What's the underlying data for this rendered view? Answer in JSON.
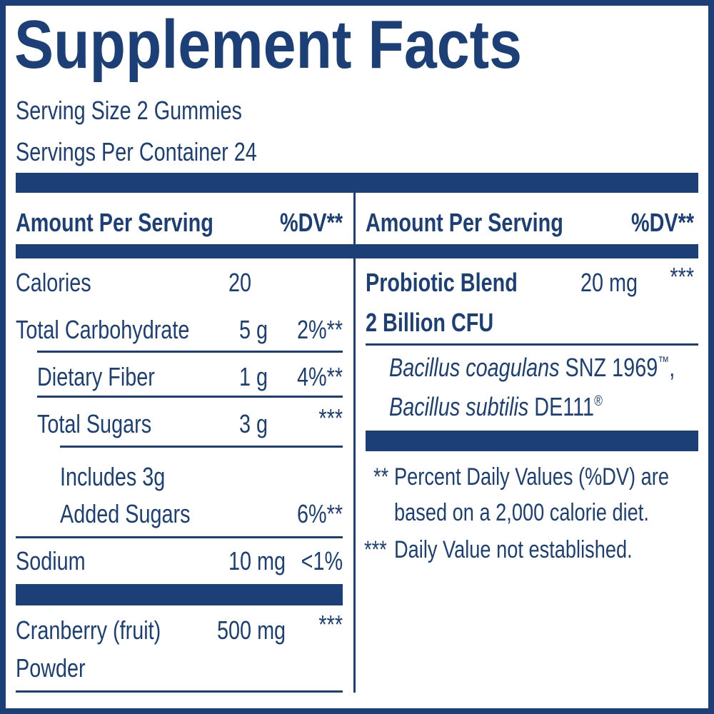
{
  "title": "Supplement Facts",
  "serving_size": "Serving Size 2 Gummies",
  "servings_per_container": "Servings Per Container 24",
  "left": {
    "header": {
      "amount": "Amount Per Serving",
      "dv": "%DV**"
    },
    "rows": [
      {
        "name": "Calories",
        "amount": "20"
      },
      {
        "name": "Total Carbohydrate",
        "amount": "5 g",
        "dv": "2%**"
      },
      {
        "name": "Dietary Fiber",
        "amount": "1 g",
        "dv": "4%**"
      },
      {
        "name": "Total Sugars",
        "amount": "3 g",
        "dv": "***"
      },
      {
        "name": [
          "Includes 3g",
          "Added Sugars"
        ],
        "dv": "6%**"
      },
      {
        "name": "Sodium",
        "amount": "10 mg",
        "dv": "<1%"
      },
      {
        "name": [
          "Cranberry (fruit)",
          "Powder"
        ],
        "amount": "500 mg",
        "dv": "***"
      }
    ]
  },
  "right": {
    "header": {
      "amount": "Amount Per Serving",
      "dv": "%DV**"
    },
    "blend": {
      "name": [
        "Probiotic Blend",
        "2 Billion CFU"
      ],
      "amount": "20 mg",
      "dv": "***"
    },
    "strains": [
      {
        "species": "Bacillus coagulans",
        "strain": " SNZ 1969",
        "mark": "™",
        "sep": ","
      },
      {
        "species": "Bacillus subtilis",
        "strain": " DE111",
        "mark": "®"
      }
    ]
  },
  "footnotes": [
    {
      "symbol": "**",
      "lines": [
        "Percent Daily Values (%DV) are",
        "based on a 2,000 calorie diet."
      ]
    },
    {
      "symbol": "***",
      "lines": [
        "Daily Value not established."
      ]
    }
  ]
}
